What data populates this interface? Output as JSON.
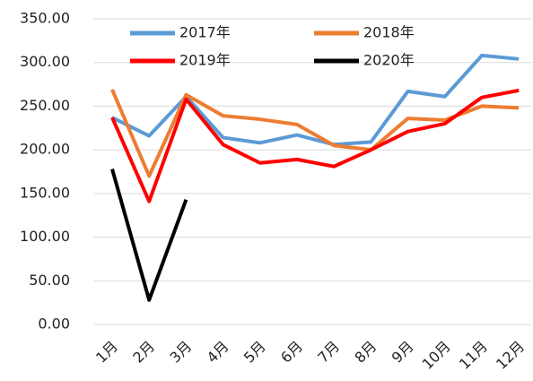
{
  "chart_data": {
    "type": "line",
    "categories": [
      "1月",
      "2月",
      "3月",
      "4月",
      "5月",
      "6月",
      "7月",
      "8月",
      "9月",
      "10月",
      "11月",
      "12月"
    ],
    "series": [
      {
        "name": "2017年",
        "color": "#5b9bd5",
        "values": [
          237,
          216,
          261,
          214,
          208,
          217,
          206,
          209,
          267,
          261,
          308,
          304
        ]
      },
      {
        "name": "2018年",
        "color": "#ed7d31",
        "values": [
          269,
          170,
          263,
          239,
          235,
          229,
          205,
          200,
          236,
          234,
          250,
          248
        ]
      },
      {
        "name": "2019年",
        "color": "#ff0000",
        "values": [
          237,
          141,
          258,
          206,
          185,
          189,
          181,
          200,
          221,
          230,
          260,
          268
        ]
      },
      {
        "name": "2020年",
        "color": "#000000",
        "values": [
          178,
          28,
          143,
          null,
          null,
          null,
          null,
          null,
          null,
          null,
          null,
          null
        ]
      }
    ],
    "ylim": [
      0,
      350
    ],
    "yticks": [
      {
        "value": 0,
        "label": "0.00"
      },
      {
        "value": 50,
        "label": "50.00"
      },
      {
        "value": 100,
        "label": "100.00"
      },
      {
        "value": 150,
        "label": "150.00"
      },
      {
        "value": 200,
        "label": "200.00"
      },
      {
        "value": 250,
        "label": "250.00"
      },
      {
        "value": 300,
        "label": "300.00"
      },
      {
        "value": 350,
        "label": "350.00"
      }
    ],
    "grid": true
  }
}
